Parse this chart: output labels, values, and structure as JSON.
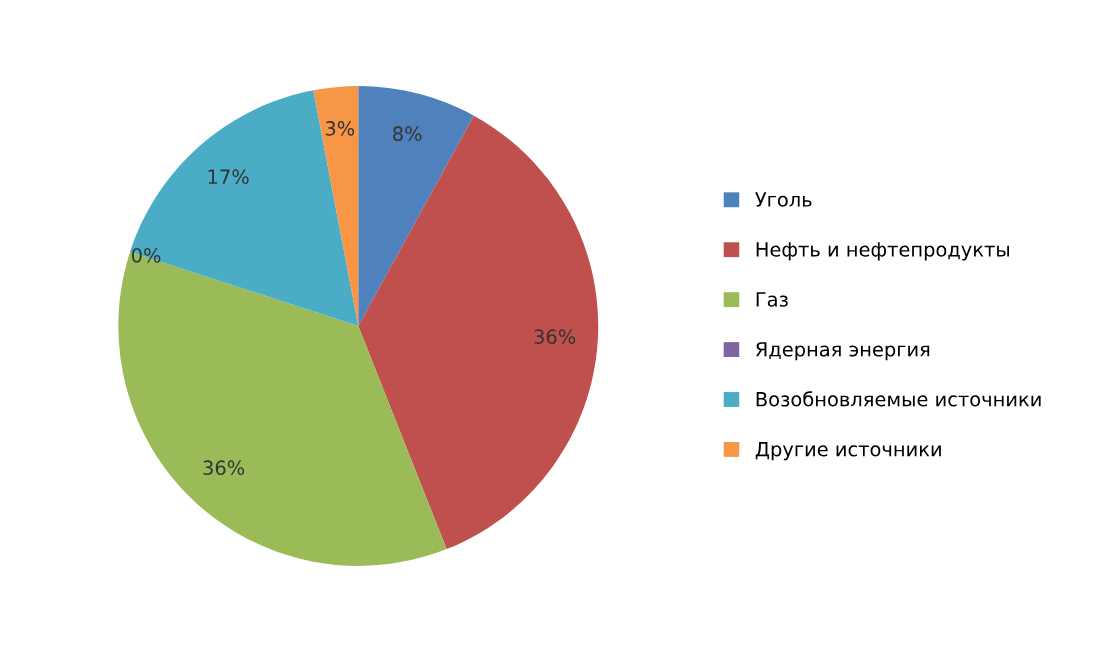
{
  "chart_data": {
    "type": "pie",
    "categories": [
      "Уголь",
      "Нефть и нефтепродукты",
      "Газ",
      "Ядерная энергия",
      "Возобновляемые источники",
      "Другие источники"
    ],
    "values": [
      8,
      36,
      36,
      0,
      17,
      3
    ],
    "colors": [
      "#4f81bd",
      "#c0504d",
      "#9bbb59",
      "#8064a2",
      "#4bacc6",
      "#f79646"
    ],
    "value_labels": [
      "8%",
      "36%",
      "36%",
      "0%",
      "17%",
      "3%"
    ],
    "legend": "right"
  }
}
